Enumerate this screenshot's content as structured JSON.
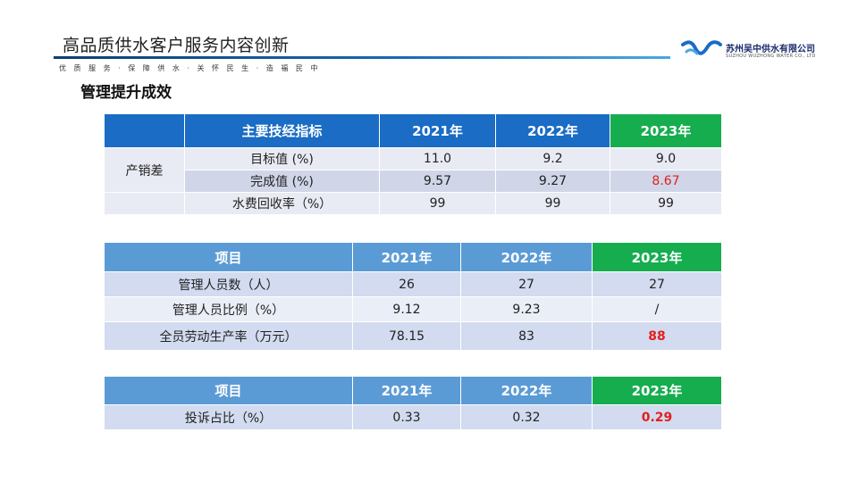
{
  "header": {
    "title": "高品质供水客户服务内容创新",
    "slogan": "优 质 服 务 · 保 障 供 水 · 关 怀 民 生 · 造 福 民 中"
  },
  "logo": {
    "name": "苏州吴中供水有限公司",
    "subtitle": "SUZHOU WUZHONG WATER CO., LTD",
    "colors": {
      "primary": "#1a6cc4",
      "secondary": "#4aa6e6"
    }
  },
  "section_title": "管理提升成效",
  "table1": {
    "headers": [
      "主要技经指标",
      "2021年",
      "2022年",
      "2023年"
    ],
    "group_label": "产销差",
    "rows": [
      {
        "label": "目标值 (%)",
        "values": [
          "11.0",
          "9.2",
          "9.0"
        ]
      },
      {
        "label": "完成值 (%)",
        "values": [
          "9.57",
          "9.27",
          "8.67"
        ]
      },
      {
        "label": "水费回收率（%）",
        "values": [
          "99",
          "99",
          "99"
        ]
      }
    ]
  },
  "table2": {
    "headers": [
      "项目",
      "2021年",
      "2022年",
      "2023年"
    ],
    "rows": [
      {
        "label": "管理人员数（人）",
        "values": [
          "26",
          "27",
          "27"
        ]
      },
      {
        "label": "管理人员比例（%）",
        "values": [
          "9.12",
          "9.23",
          "/"
        ]
      },
      {
        "label": "全员劳动生产率（万元）",
        "values": [
          "78.15",
          "83",
          "88"
        ]
      }
    ]
  },
  "table3": {
    "headers": [
      "项目",
      "2021年",
      "2022年",
      "2023年"
    ],
    "rows": [
      {
        "label": "投诉占比（%）",
        "values": [
          "0.33",
          "0.32",
          "0.29"
        ]
      }
    ]
  },
  "colors": {
    "header_blue_dark": "#1a6cc4",
    "header_blue_light": "#5b9bd5",
    "header_green": "#16ad4f",
    "highlight_red": "#e0201d"
  }
}
